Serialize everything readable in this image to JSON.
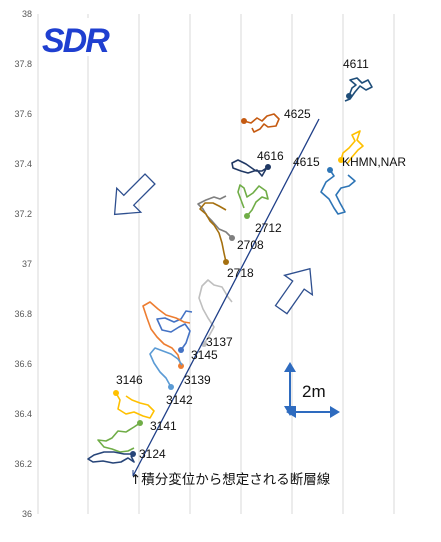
{
  "logo": {
    "text": "SDR",
    "color": "#1f3fd0"
  },
  "chart_data": {
    "type": "line",
    "title": "",
    "xlabel": "",
    "ylabel": "",
    "ylim": [
      36,
      38
    ],
    "grid": {
      "vertical": true,
      "horizontal": false
    },
    "yticks": [
      "36",
      "36.2",
      "36.4",
      "36.6",
      "36.8",
      "37",
      "37.2",
      "37.4",
      "37.6",
      "37.8",
      "38"
    ],
    "fault_line": {
      "label": "↑積分変位から想定される断層線",
      "color": "#1f3f88",
      "from_y": 36.2,
      "to_y": 37.58
    },
    "scale_bar": {
      "label": "2m",
      "color": "#2e6bbf"
    },
    "motion_arrows": [
      {
        "direction": "down-left",
        "color": "#2e4f8f"
      },
      {
        "direction": "up-right",
        "color": "#2e4f8f"
      }
    ],
    "stations": [
      {
        "name": "4611",
        "color": "#1f4e79",
        "end_y": 37.74
      },
      {
        "name": "4625",
        "color": "#c55a11",
        "end_y": 37.55
      },
      {
        "name": "4616",
        "color": "#203864",
        "end_y": 37.38
      },
      {
        "name": "4615",
        "color": "#2e75b6",
        "end_y": 37.36
      },
      {
        "name": "KHMN,NAR",
        "color": "#ffc000",
        "end_y": 37.39
      },
      {
        "name": "2712",
        "color": "#70ad47",
        "end_y": 37.19
      },
      {
        "name": "2708",
        "color": "#7f7f7f",
        "end_y": 37.1
      },
      {
        "name": "2718",
        "color": "#a5700f",
        "end_y": 37.01
      },
      {
        "name": "3137",
        "color": "#bfbfbf",
        "end_y": 36.69
      },
      {
        "name": "3145",
        "color": "#4472c4",
        "end_y": 36.65
      },
      {
        "name": "3139",
        "color": "#ed7d31",
        "end_y": 36.59
      },
      {
        "name": "3142",
        "color": "#5b9bd5",
        "end_y": 36.53
      },
      {
        "name": "3146",
        "color": "#ffc000",
        "end_y": 36.5
      },
      {
        "name": "3141",
        "color": "#70ad47",
        "end_y": 36.37
      },
      {
        "name": "3124",
        "color": "#264478",
        "end_y": 36.24
      }
    ]
  }
}
